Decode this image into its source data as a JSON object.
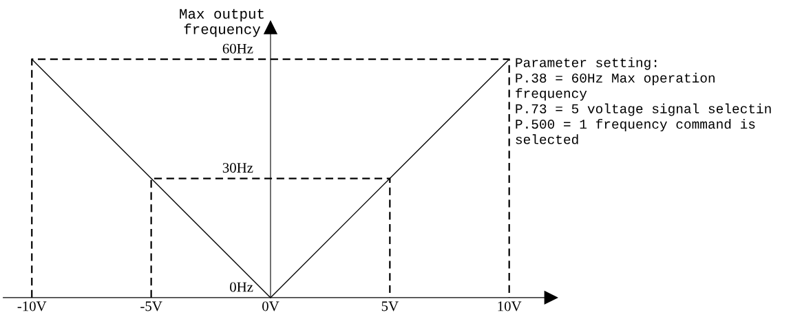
{
  "chart_data": {
    "type": "line",
    "ylabel": "Max output\nfrequency",
    "series": [
      {
        "x": [
          -10,
          0,
          10
        ],
        "values": [
          60,
          0,
          60
        ],
        "color": "#000000",
        "line_style": "solid"
      },
      {
        "x": [
          -10,
          -10,
          10,
          10
        ],
        "values": [
          0,
          60,
          60,
          0
        ],
        "color": "#000000",
        "line_style": "dashed"
      },
      {
        "x": [
          -5,
          -5,
          5,
          5
        ],
        "values": [
          0,
          30,
          30,
          0
        ],
        "color": "#000000",
        "line_style": "dashed"
      }
    ],
    "xlim": [
      -11.2,
      11.75
    ],
    "ylim": [
      0,
      68
    ],
    "xticks": [
      {
        "value": -10,
        "label": "-10V"
      },
      {
        "value": -5,
        "label": "-5V"
      },
      {
        "value": 0,
        "label": "0V"
      },
      {
        "value": 5,
        "label": "5V"
      },
      {
        "value": 10,
        "label": "10V"
      }
    ],
    "yticks": [
      {
        "value": 0,
        "label": "0Hz"
      },
      {
        "value": 30,
        "label": "30Hz"
      },
      {
        "value": 60,
        "label": "60Hz"
      }
    ],
    "grid": false,
    "legend": false,
    "marker": "none",
    "annotations": [
      "Parameter setting:\nP.38 = 60Hz Max operation\nfrequency\nP.73 = 5 voltage signal selectin\nP.500 = 1 frequency command is\nselected"
    ]
  }
}
